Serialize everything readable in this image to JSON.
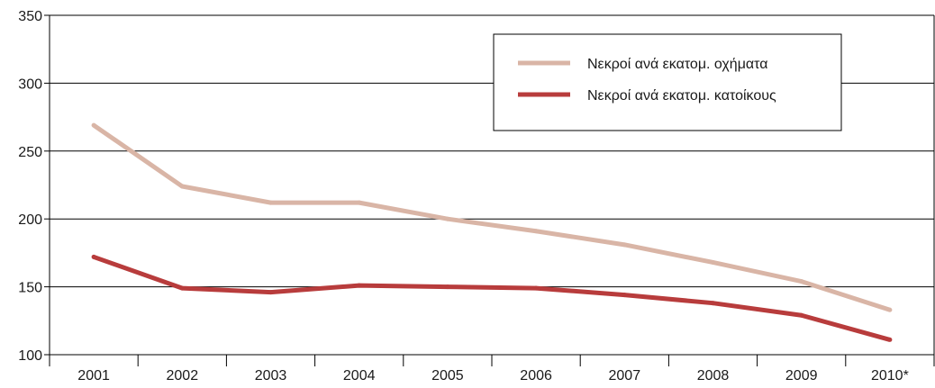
{
  "chart_data": {
    "type": "line",
    "categories": [
      "2001",
      "2002",
      "2003",
      "2004",
      "2005",
      "2006",
      "2007",
      "2008",
      "2009",
      "2010*"
    ],
    "series": [
      {
        "name": "Νεκροί ανά εκατομ. οχήματα",
        "color": "#d9b5a6",
        "values": [
          269,
          224,
          212,
          212,
          200,
          191,
          181,
          168,
          154,
          133
        ]
      },
      {
        "name": "Νεκροί ανά εκατομ. κατοίκους",
        "color": "#b83c3c",
        "values": [
          172,
          149,
          146,
          151,
          150,
          149,
          144,
          138,
          129,
          111
        ]
      }
    ],
    "ylim": [
      100,
      350
    ],
    "yticks": [
      100,
      150,
      200,
      250,
      300,
      350
    ],
    "grid": true,
    "legend_position": "top-right",
    "title": "",
    "xlabel": "",
    "ylabel": ""
  }
}
